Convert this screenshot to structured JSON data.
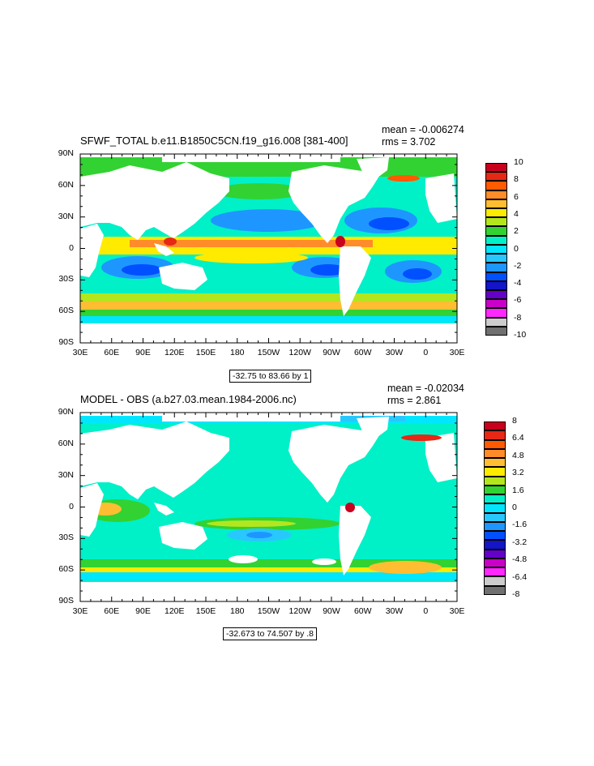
{
  "panels": [
    {
      "title": "SFWF_TOTAL b.e11.B1850C5CN.f19_g16.008 [381-400]",
      "mean": "mean = -0.006274",
      "rms": "rms = 3.702",
      "range_note": "-32.75 to 83.66 by 1",
      "colorbar_labels": [
        "10",
        "8",
        "6",
        "4",
        "2",
        "0",
        "-2",
        "-4",
        "-6",
        "-8",
        "-10"
      ],
      "colorbar_colors": [
        "#c8001e",
        "#e62814",
        "#ff5a00",
        "#ff8c28",
        "#ffbe32",
        "#ffeb00",
        "#b4e61e",
        "#32d232",
        "#00f0c8",
        "#00e6ff",
        "#28c8ff",
        "#1e96ff",
        "#0050ff",
        "#1414c8",
        "#6400c8",
        "#c800c8",
        "#ff28ff",
        "#cccccc",
        "#707070"
      ]
    },
    {
      "title": "MODEL - OBS (a.b27.03.mean.1984-2006.nc)",
      "mean": "mean = -0.02034",
      "rms": "rms = 2.861",
      "range_note": "-32.673 to 74.507 by .8",
      "colorbar_labels": [
        "8",
        "6.4",
        "4.8",
        "3.2",
        "1.6",
        "0",
        "-1.6",
        "-3.2",
        "-4.8",
        "-6.4",
        "-8"
      ],
      "colorbar_colors": [
        "#c8001e",
        "#e62814",
        "#ff5a00",
        "#ff8c28",
        "#ffbe32",
        "#ffeb00",
        "#b4e61e",
        "#32d232",
        "#00f0c8",
        "#00e6ff",
        "#28c8ff",
        "#1e96ff",
        "#0050ff",
        "#1414c8",
        "#6400c8",
        "#c800c8",
        "#ff28ff",
        "#cccccc",
        "#707070"
      ]
    }
  ],
  "lat_labels": [
    "90N",
    "60N",
    "30N",
    "0",
    "30S",
    "60S",
    "90S"
  ],
  "lon_labels": [
    "30E",
    "60E",
    "90E",
    "120E",
    "150E",
    "180",
    "150W",
    "120W",
    "90W",
    "60W",
    "30W",
    "0",
    "30E"
  ]
}
